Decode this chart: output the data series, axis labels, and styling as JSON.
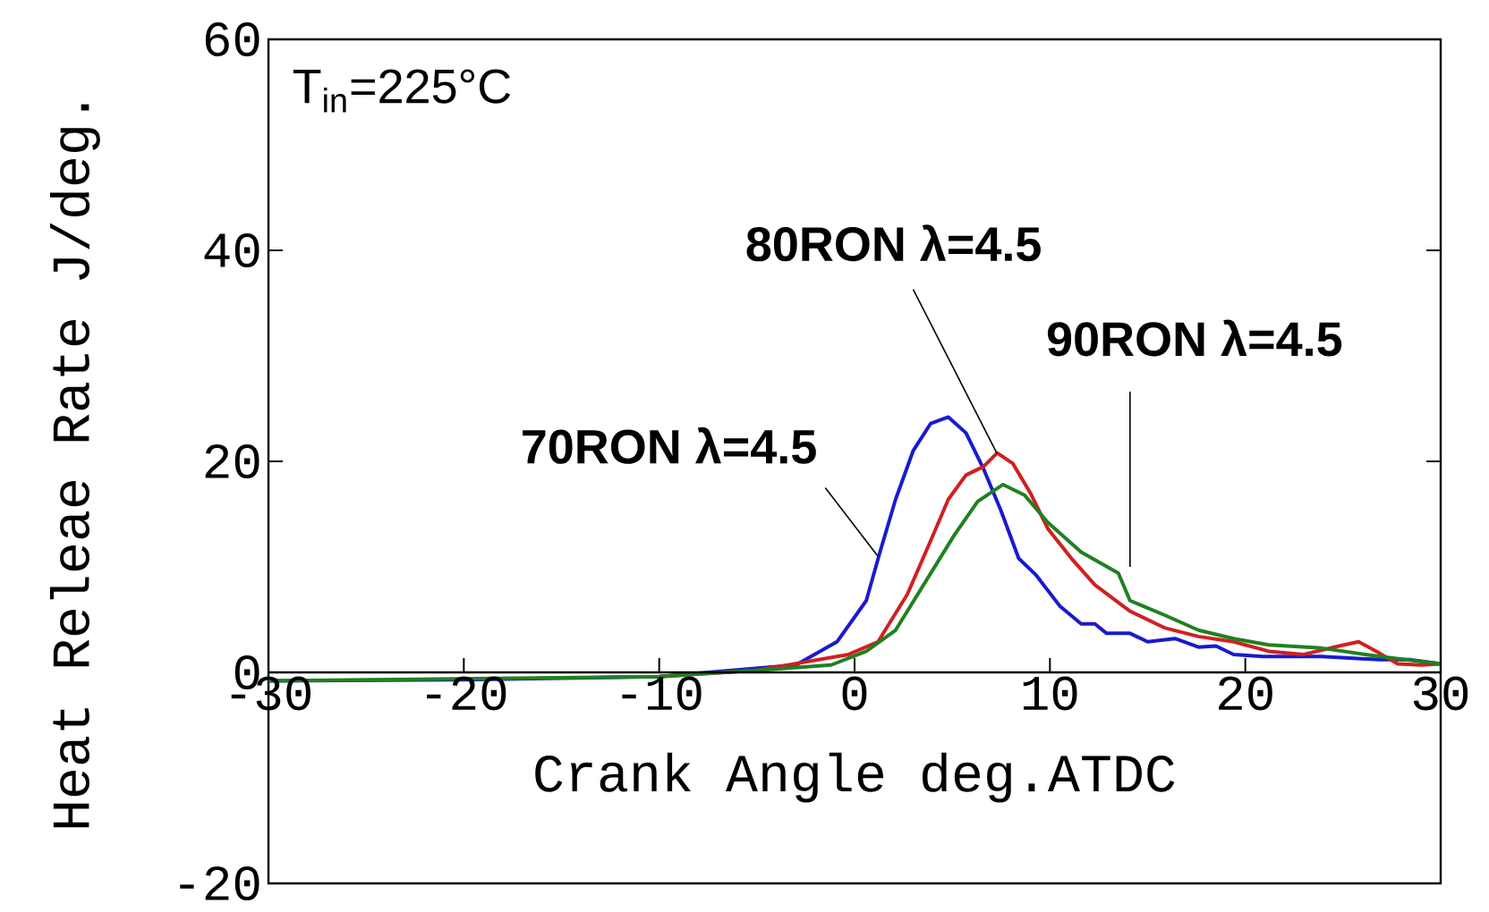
{
  "chart_data": {
    "type": "line",
    "xlabel": "Crank Angle deg.ATDC",
    "ylabel": "Heat Releae Rate J/deg.",
    "annotations": [
      "T$_{in}$=225°C"
    ],
    "xlim": [
      -30,
      30
    ],
    "xticks": [
      -30,
      -20,
      -10,
      0,
      10,
      20,
      30
    ],
    "ylim": [
      -20,
      60
    ],
    "yticks": [
      -20,
      0,
      20,
      40,
      60
    ],
    "grid": false,
    "legend": false,
    "marker": "none",
    "line_style": "solid",
    "series": [
      {
        "name": "70RON λ=4.5",
        "color": "#1a1acc",
        "x": [
          -30,
          -20,
          -10,
          -5.6,
          -3.0,
          -0.9,
          0.6,
          1.3,
          2.1,
          3.0,
          3.9,
          4.8,
          5.7,
          6.6,
          7.5,
          8.4,
          9.3,
          10.5,
          11.6,
          12.3,
          12.9,
          14.1,
          15.0,
          16.4,
          17.6,
          18.5,
          19.4,
          20.9,
          23.9,
          26.9,
          28.4,
          30
        ],
        "values": [
          -0.8,
          -0.7,
          -0.4,
          0.3,
          0.7,
          2.9,
          6.8,
          11.4,
          16.4,
          21,
          23.6,
          24.2,
          22.7,
          19.3,
          15.3,
          10.8,
          9.2,
          6.3,
          4.6,
          4.6,
          3.7,
          3.7,
          2.9,
          3.2,
          2.4,
          2.5,
          1.7,
          1.5,
          1.5,
          1.2,
          1.2,
          0.8
        ]
      },
      {
        "name": "80RON λ=4.5",
        "color": "#d02020",
        "x": [
          -10,
          -5,
          -0.3,
          1.2,
          2.7,
          3.9,
          4.8,
          5.7,
          6.6,
          7.3,
          8.1,
          9.0,
          9.9,
          11.1,
          12.3,
          14.1,
          15.9,
          17.6,
          19.4,
          21.2,
          23.0,
          24.8,
          25.8,
          26.7,
          27.8,
          29,
          30
        ],
        "values": [
          -0.4,
          0.2,
          1.7,
          2.9,
          7.4,
          12.5,
          16.4,
          18.7,
          19.5,
          20.8,
          19.8,
          17,
          13.6,
          10.8,
          8.3,
          5.8,
          4.2,
          3.4,
          2.9,
          2.0,
          1.7,
          2.5,
          2.9,
          2.0,
          0.8,
          0.7,
          0.8
        ]
      },
      {
        "name": "90RON λ=4.5",
        "color": "#208020",
        "x": [
          -30,
          -20,
          -10,
          -5,
          -1.2,
          0.6,
          2.1,
          3.6,
          5.1,
          6.3,
          7.6,
          8.7,
          9.9,
          11.6,
          13.5,
          14.1,
          15.9,
          17.6,
          19.4,
          21.2,
          23.9,
          26.9,
          30
        ],
        "values": [
          -0.8,
          -0.6,
          -0.4,
          0.2,
          0.7,
          2.0,
          4.0,
          8.5,
          13,
          16.2,
          17.8,
          16.8,
          14.2,
          11.4,
          9.4,
          6.8,
          5.4,
          4.0,
          3.2,
          2.6,
          2.3,
          1.5,
          0.8
        ]
      }
    ]
  }
}
